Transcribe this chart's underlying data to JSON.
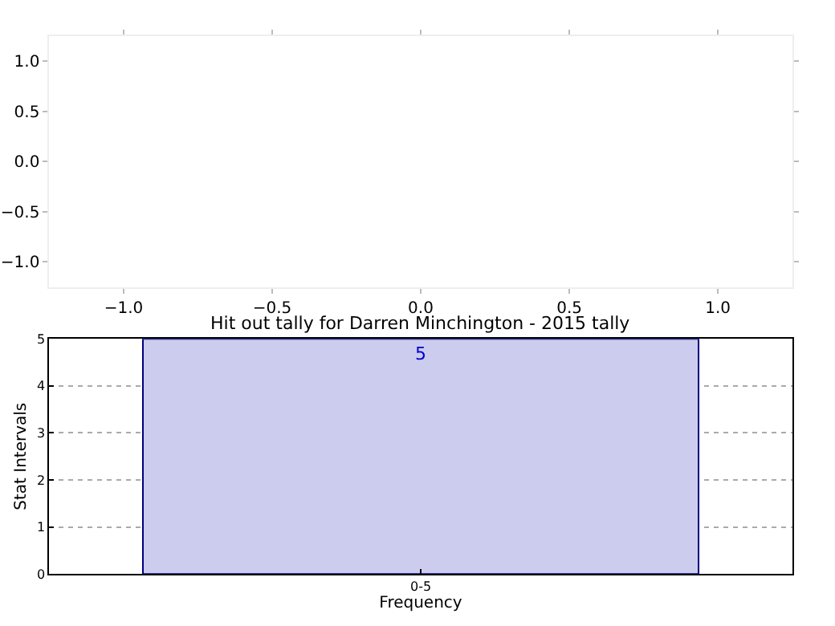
{
  "chart_data": [
    {
      "type": "scatter",
      "xlim": [
        -1.25,
        1.25
      ],
      "ylim": [
        -1.25,
        1.25
      ],
      "xticks": [
        {
          "value": -1,
          "label": "−1.0"
        },
        {
          "value": -0.5,
          "label": "−0.5"
        },
        {
          "value": 0,
          "label": "0.0"
        },
        {
          "value": 0.5,
          "label": "0.5"
        },
        {
          "value": 1,
          "label": "1.0"
        }
      ],
      "yticks": [
        {
          "value": -1,
          "label": "−1.0"
        },
        {
          "value": -0.5,
          "label": "−0.5"
        },
        {
          "value": 0,
          "label": "0.0"
        },
        {
          "value": 0.5,
          "label": "0.5"
        },
        {
          "value": 1,
          "label": "1.0"
        }
      ],
      "grid": false
    },
    {
      "type": "bar",
      "title": "Hit out tally for Darren Minchington - 2015 tally",
      "xlabel": "Frequency",
      "ylabel": "Stat Intervals",
      "categories": [
        "0-5"
      ],
      "values": [
        5
      ],
      "color": "#ccccee",
      "ylim": [
        0,
        5
      ],
      "yticks": [
        0,
        1,
        2,
        3,
        4,
        5
      ],
      "grid": true,
      "data_labels": true
    }
  ]
}
